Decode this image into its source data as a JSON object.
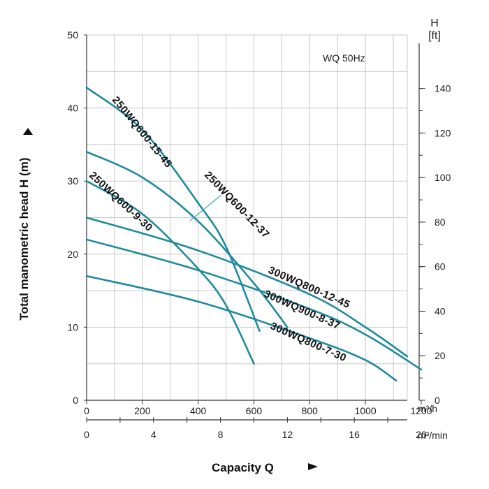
{
  "chart_data": {
    "type": "line",
    "annotation": "WQ  50Hz",
    "ylabel": "Total manometric head H (m)",
    "xlabel": "Capacity Q",
    "xunit_primary": "m³/h",
    "xunit_secondary": "m³/min",
    "right_axis_title_top": "H",
    "right_axis_title_unit": "[ft]",
    "xlim": [
      0,
      1150
    ],
    "ylim": [
      0,
      50
    ],
    "x_ticks": [
      "0",
      "200",
      "400",
      "600",
      "800",
      "1000",
      "1200"
    ],
    "x2_ticks": [
      "0",
      "4",
      "8",
      "12",
      "16",
      "20"
    ],
    "y_ticks": [
      "0",
      "10",
      "20",
      "30",
      "40",
      "50"
    ],
    "y_right_ticks": [
      "0",
      "20",
      "40",
      "60",
      "80",
      "100",
      "120",
      "140"
    ],
    "grid": true,
    "series": [
      {
        "name": "250WQ600-9-30",
        "x": [
          0,
          200,
          400,
          500,
          600
        ],
        "y": [
          30,
          25.5,
          18,
          13,
          5
        ]
      },
      {
        "name": "250WQ600-15-45",
        "x": [
          0,
          200,
          400,
          500,
          620
        ],
        "y": [
          42.8,
          37,
          27,
          21,
          9.5
        ]
      },
      {
        "name": "250WQ600-12-37",
        "x": [
          0,
          200,
          400,
          600,
          720
        ],
        "y": [
          34,
          30.5,
          24.5,
          16,
          10
        ]
      },
      {
        "name": "300WQ800-12-45",
        "x": [
          0,
          400,
          800,
          1000,
          1150
        ],
        "y": [
          25,
          20.5,
          14.5,
          10,
          6
        ]
      },
      {
        "name": "300WQ900-8-37",
        "x": [
          0,
          400,
          800,
          1000,
          1200
        ],
        "y": [
          22,
          17.8,
          12.5,
          9,
          4.2
        ]
      },
      {
        "name": "300WQ800-7-30",
        "x": [
          0,
          400,
          800,
          1000,
          1110
        ],
        "y": [
          17,
          13.5,
          8.5,
          5.5,
          2.7
        ]
      }
    ]
  }
}
